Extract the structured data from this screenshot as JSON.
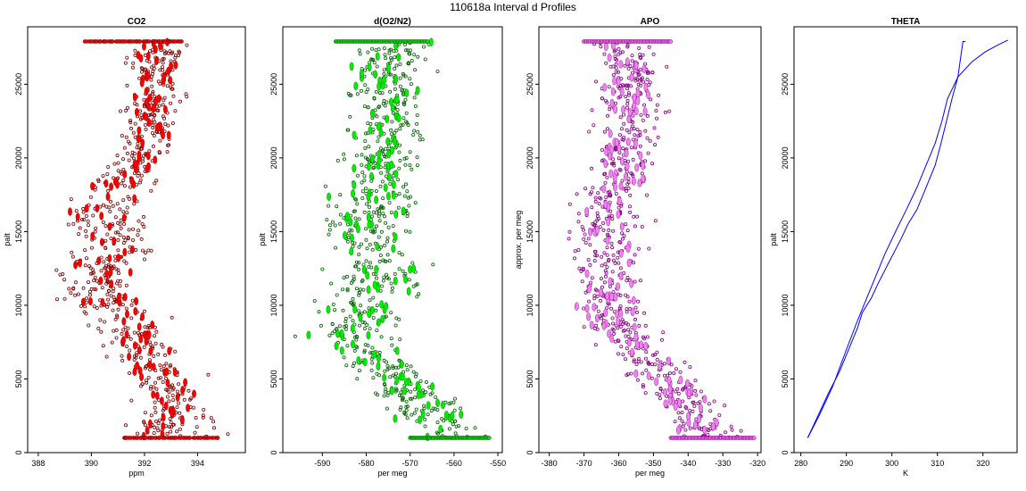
{
  "figure": {
    "title": "110618a   Interval d Profiles"
  },
  "chart_data": [
    {
      "type": "scatter",
      "title": "CO2",
      "xlabel": "ppm",
      "ylabel": "palt",
      "xlim": [
        387.6,
        395.8
      ],
      "ylim": [
        0,
        28900
      ],
      "xticks": [
        388,
        390,
        392,
        394
      ],
      "yticks": [
        0,
        5000,
        10000,
        15000,
        20000,
        25000
      ],
      "color": "#ff0000",
      "edge_color": "#800000",
      "grid": false,
      "profile": [
        [
          393.0,
          1000
        ],
        [
          393.1,
          3000
        ],
        [
          392.5,
          6000
        ],
        [
          391.8,
          8000
        ],
        [
          390.6,
          10000
        ],
        [
          390.0,
          12000
        ],
        [
          391.0,
          14000
        ],
        [
          390.6,
          16000
        ],
        [
          390.9,
          18000
        ],
        [
          391.9,
          20000
        ],
        [
          392.2,
          22000
        ],
        [
          392.4,
          25000
        ],
        [
          392.6,
          27900
        ]
      ],
      "spread": [
        [
          1000,
          1.6
        ],
        [
          4000,
          1.2
        ],
        [
          10000,
          1.5
        ],
        [
          16000,
          1.5
        ],
        [
          20000,
          0.9
        ],
        [
          27900,
          1.0
        ]
      ],
      "top_level": {
        "y": 27900,
        "xmin": 389.8,
        "xmax": 393.4
      },
      "bottom_level": {
        "y": 1000,
        "xmin": 391.2,
        "xmax": 394.8
      }
    },
    {
      "type": "scatter",
      "title": "d(O2/N2)",
      "xlabel": "per meg",
      "ylabel": "palt",
      "xlim": [
        -599,
        -549
      ],
      "ylim": [
        0,
        28900
      ],
      "xticks": [
        -590,
        -580,
        -570,
        -560,
        -550
      ],
      "yticks": [
        0,
        5000,
        10000,
        15000,
        20000,
        25000
      ],
      "color": "#00ee00",
      "edge_color": "#006400",
      "grid": false,
      "profile": [
        [
          -560,
          1000
        ],
        [
          -567,
          3000
        ],
        [
          -577,
          6000
        ],
        [
          -584,
          8000
        ],
        [
          -579,
          10000
        ],
        [
          -575,
          12000
        ],
        [
          -580,
          15000
        ],
        [
          -577,
          17000
        ],
        [
          -577,
          20000
        ],
        [
          -575,
          23000
        ],
        [
          -575,
          26000
        ],
        [
          -574,
          27900
        ]
      ],
      "spread": [
        [
          1000,
          8
        ],
        [
          8000,
          10
        ],
        [
          15000,
          10
        ],
        [
          22000,
          8
        ],
        [
          27900,
          8
        ]
      ],
      "top_level": {
        "y": 27900,
        "xmin": -587,
        "xmax": -566
      },
      "bottom_level": {
        "y": 1000,
        "xmin": -570,
        "xmax": -552
      }
    },
    {
      "type": "scatter",
      "title": "APO",
      "xlabel": "per meg",
      "ylabel": "approx. per meg",
      "xlim": [
        -383,
        -319
      ],
      "ylim": [
        0,
        28900
      ],
      "xticks": [
        -380,
        -370,
        -360,
        -350,
        -340,
        -330,
        -320
      ],
      "yticks": [
        0,
        5000,
        10000,
        15000,
        20000,
        25000
      ],
      "color": "#ee82ee",
      "edge_color": "#8b008b",
      "grid": false,
      "profile": [
        [
          -333,
          1000
        ],
        [
          -340,
          3000
        ],
        [
          -347,
          5000
        ],
        [
          -358,
          8000
        ],
        [
          -364,
          10000
        ],
        [
          -362,
          13000
        ],
        [
          -364,
          15000
        ],
        [
          -362,
          17000
        ],
        [
          -358,
          20000
        ],
        [
          -356,
          23000
        ],
        [
          -357,
          26000
        ],
        [
          -358,
          27900
        ]
      ],
      "spread": [
        [
          1000,
          8
        ],
        [
          6000,
          9
        ],
        [
          12000,
          10
        ],
        [
          20000,
          8
        ],
        [
          27900,
          8
        ]
      ],
      "top_level": {
        "y": 27900,
        "xmin": -370,
        "xmax": -345
      },
      "bottom_level": {
        "y": 1000,
        "xmin": -345,
        "xmax": -321
      }
    },
    {
      "type": "line",
      "title": "THETA",
      "xlabel": "K",
      "ylabel": "palt",
      "xlim": [
        278.5,
        327.5
      ],
      "ylim": [
        0,
        28900
      ],
      "xticks": [
        280,
        290,
        300,
        310,
        320
      ],
      "yticks": [
        0,
        5000,
        10000,
        15000,
        20000,
        25000
      ],
      "color": "#0000ff",
      "grid": false,
      "series": [
        {
          "points": [
            [
              281.5,
              1000
            ],
            [
              283,
              2000
            ],
            [
              286,
              4000
            ],
            [
              288.5,
              5500
            ],
            [
              290.5,
              7000
            ],
            [
              292.5,
              8500
            ],
            [
              293.5,
              9500
            ],
            [
              295.5,
              10500
            ],
            [
              297,
              11500
            ],
            [
              299.5,
              13000
            ],
            [
              302,
              14500
            ],
            [
              303.5,
              15500
            ],
            [
              305.5,
              16500
            ],
            [
              307.5,
              18000
            ],
            [
              309.5,
              19500
            ],
            [
              310.8,
              21000
            ],
            [
              312,
              22500
            ],
            [
              313.2,
              24000
            ],
            [
              314.5,
              25500
            ],
            [
              315.2,
              27000
            ],
            [
              315.6,
              27900
            ],
            [
              316.2,
              27900
            ]
          ]
        },
        {
          "points": [
            [
              281.5,
              1000
            ],
            [
              284,
              2500
            ],
            [
              287,
              4500
            ],
            [
              290,
              7000
            ],
            [
              292.5,
              9000
            ],
            [
              294.5,
              10500
            ],
            [
              296.5,
              12000
            ],
            [
              298.5,
              13500
            ],
            [
              300.8,
              15000
            ],
            [
              303.2,
              16500
            ],
            [
              305.5,
              18000
            ],
            [
              307.5,
              19500
            ],
            [
              309.5,
              21000
            ],
            [
              311,
              22500
            ],
            [
              312.2,
              24000
            ],
            [
              314.5,
              25500
            ],
            [
              317.5,
              26500
            ],
            [
              320.5,
              27200
            ],
            [
              323.5,
              27700
            ],
            [
              325.5,
              28000
            ]
          ]
        }
      ]
    }
  ]
}
